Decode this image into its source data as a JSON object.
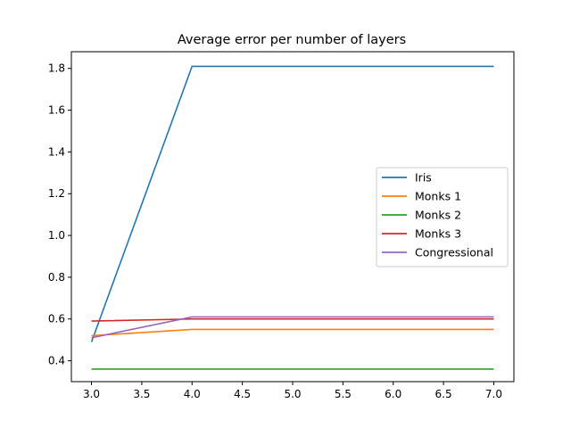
{
  "chart_data": {
    "type": "line",
    "title": "Average error per number of layers",
    "xlabel": "",
    "ylabel": "",
    "x": [
      3,
      4,
      5,
      6,
      7
    ],
    "xlim": [
      2.8,
      7.2
    ],
    "ylim": [
      0.3,
      1.88
    ],
    "xticks": [
      3.0,
      3.5,
      4.0,
      4.5,
      5.0,
      5.5,
      6.0,
      6.5,
      7.0
    ],
    "yticks": [
      0.4,
      0.6,
      0.8,
      1.0,
      1.2,
      1.4,
      1.6,
      1.8
    ],
    "xtick_labels": [
      "3.0",
      "3.5",
      "4.0",
      "4.5",
      "5.0",
      "5.5",
      "6.0",
      "6.5",
      "7.0"
    ],
    "ytick_labels": [
      "0.4",
      "0.6",
      "0.8",
      "1.0",
      "1.2",
      "1.4",
      "1.6",
      "1.8"
    ],
    "grid": false,
    "legend_position": "center-right",
    "series": [
      {
        "name": "Iris",
        "color": "#1f77b4",
        "values": [
          0.49,
          1.81,
          1.81,
          1.81,
          1.81
        ]
      },
      {
        "name": "Monks 1",
        "color": "#ff7f0e",
        "values": [
          0.52,
          0.55,
          0.55,
          0.55,
          0.55
        ]
      },
      {
        "name": "Monks 2",
        "color": "#2ca02c",
        "values": [
          0.36,
          0.36,
          0.36,
          0.36,
          0.36
        ]
      },
      {
        "name": "Monks 3",
        "color": "#d62728",
        "values": [
          0.59,
          0.6,
          0.6,
          0.6,
          0.6
        ]
      },
      {
        "name": "Congressional",
        "color": "#9467bd",
        "values": [
          0.51,
          0.61,
          0.61,
          0.61,
          0.61
        ]
      }
    ]
  }
}
